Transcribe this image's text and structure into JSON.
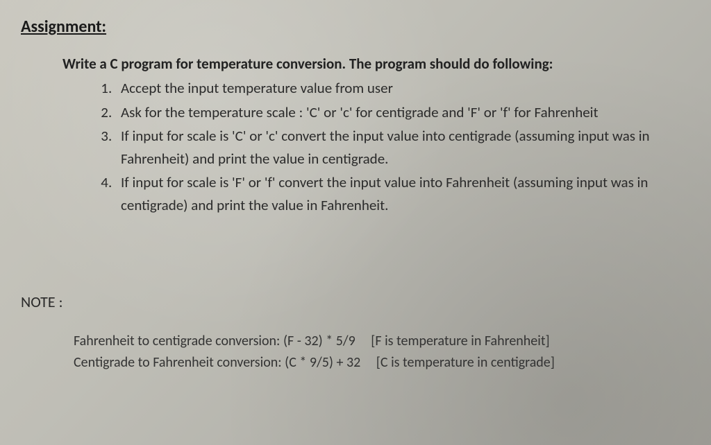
{
  "heading": "Assignment:",
  "intro": "Write a C program for temperature conversion. The program should do following:",
  "steps": [
    "Accept the input temperature value from user",
    "Ask for the temperature scale : 'C' or 'c' for centigrade and 'F' or 'f' for Fahrenheit",
    "If input for scale is 'C' or 'c' convert the input value into centigrade (assuming input was in Fahrenheit) and print the value in centigrade.",
    "If input for scale is 'F' or 'f' convert the input value into Fahrenheit (assuming input was in centigrade) and print the value in Fahrenheit."
  ],
  "note_label": "NOTE :",
  "notes": [
    {
      "desc": "Fahrenheit to centigrade conversion:",
      "formula": "(F - 32) * 5/9",
      "bracket": "[F is temperature in Fahrenheit]"
    },
    {
      "desc": "Centigrade to Fahrenheit conversion:",
      "formula": "(C * 9/5) + 32",
      "bracket": "[C is temperature in centigrade]"
    }
  ]
}
